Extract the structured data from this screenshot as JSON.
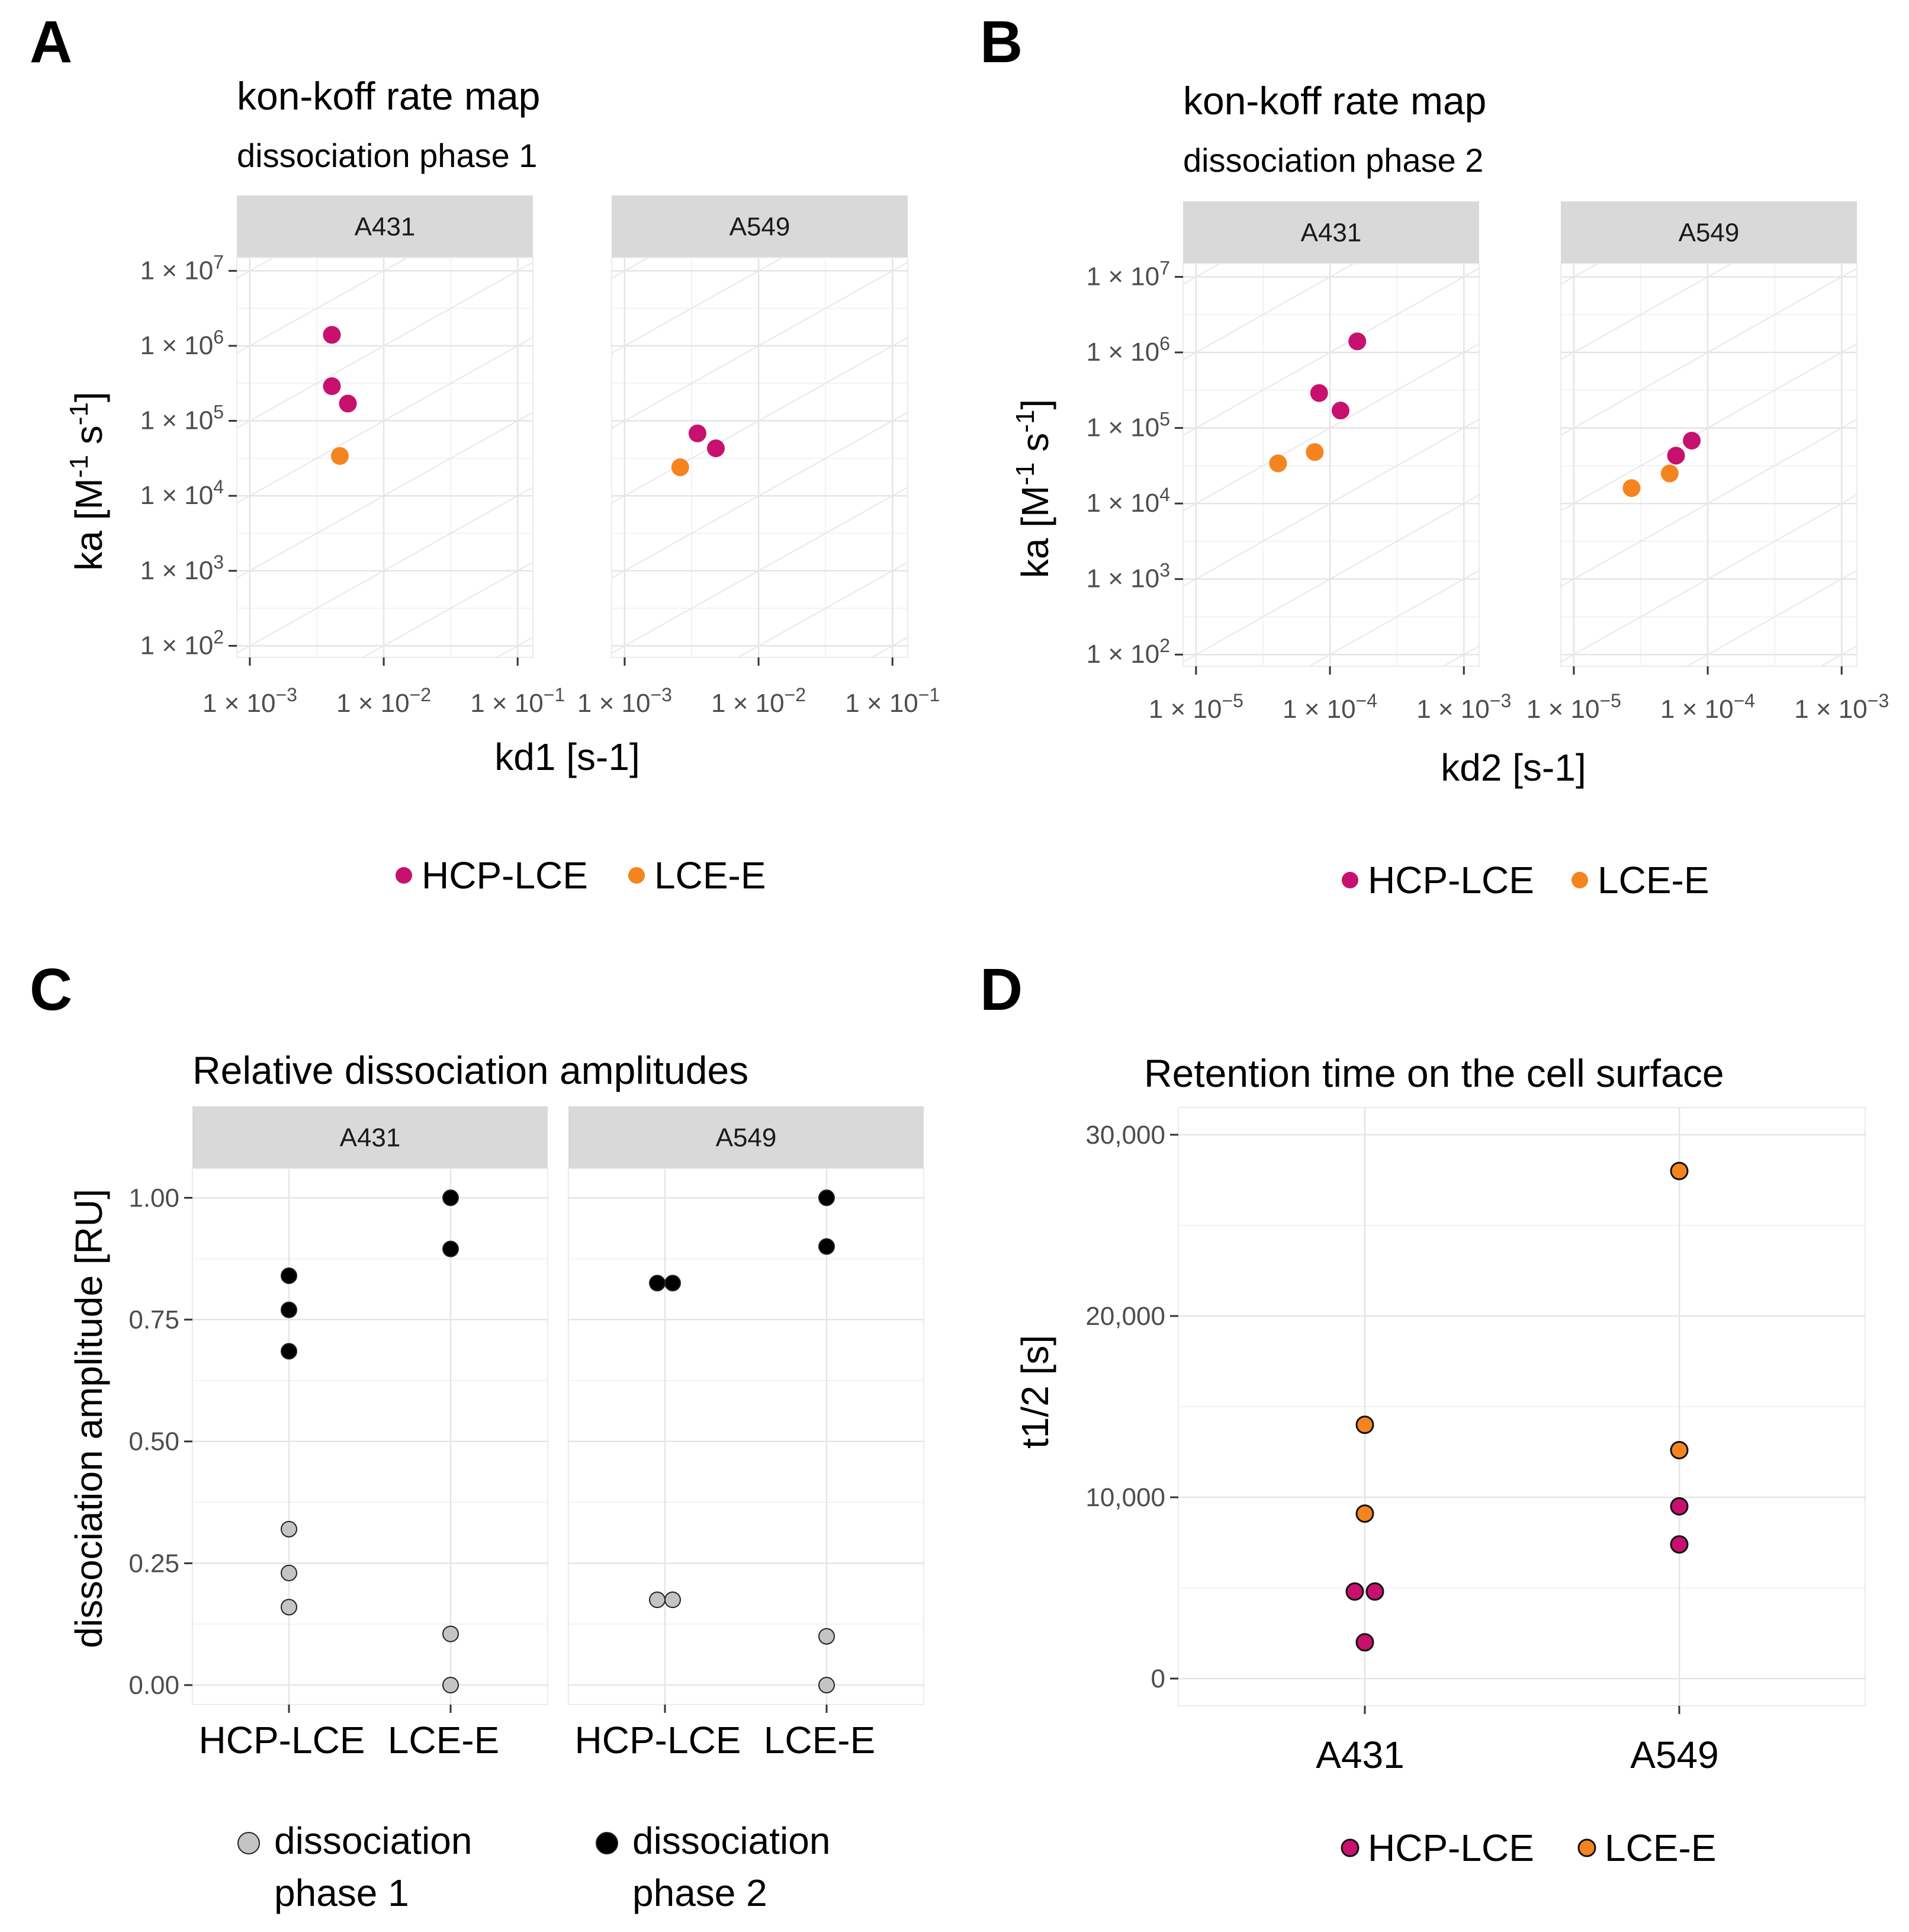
{
  "panels": {
    "A": {
      "letter": "A",
      "chart_data": {
        "type": "scatter",
        "title": "kon-koff rate map",
        "subtitle": "dissociation phase 1",
        "xlabel": "kd1 [s-1]",
        "ylabel": "ka [M-1 s-1]",
        "xscale": "log10",
        "yscale": "log10",
        "xlim": [
          0.0008,
          0.13
        ],
        "ylim": [
          70,
          15000000
        ],
        "x_ticks": [
          0.001,
          0.01,
          0.1
        ],
        "x_tick_labels": [
          {
            "base": "1 × 10",
            "exp": "−3"
          },
          {
            "base": "1 × 10",
            "exp": "−2"
          },
          {
            "base": "1 × 10",
            "exp": "−1"
          }
        ],
        "y_ticks": [
          100,
          1000,
          10000,
          100000,
          1000000,
          10000000
        ],
        "y_tick_labels": [
          {
            "base": "1 × 10",
            "exp": "2"
          },
          {
            "base": "1 × 10",
            "exp": "3"
          },
          {
            "base": "1 × 10",
            "exp": "4"
          },
          {
            "base": "1 × 10",
            "exp": "5"
          },
          {
            "base": "1 × 10",
            "exp": "6"
          },
          {
            "base": "1 × 10",
            "exp": "7"
          }
        ],
        "facets": [
          {
            "name": "A431",
            "points": [
              {
                "series": "HCP-LCE",
                "x": 0.0041,
                "y": 1400000
              },
              {
                "series": "HCP-LCE",
                "x": 0.0041,
                "y": 290000
              },
              {
                "series": "HCP-LCE",
                "x": 0.0054,
                "y": 170000
              },
              {
                "series": "LCE-E",
                "x": 0.0047,
                "y": 34000
              }
            ]
          },
          {
            "name": "A549",
            "points": [
              {
                "series": "HCP-LCE",
                "x": 0.0035,
                "y": 68000
              },
              {
                "series": "HCP-LCE",
                "x": 0.0048,
                "y": 43000
              },
              {
                "series": "LCE-E",
                "x": 0.0026,
                "y": 24000
              }
            ]
          }
        ],
        "legend": [
          {
            "label": "HCP-LCE",
            "color": "#c8106e"
          },
          {
            "label": "LCE-E",
            "color": "#f5841f"
          }
        ],
        "legend_position": "bottom"
      }
    },
    "B": {
      "letter": "B",
      "chart_data": {
        "type": "scatter",
        "title": "kon-koff rate map",
        "subtitle": "dissociation phase 2",
        "xlabel": "kd2 [s-1]",
        "ylabel": "ka [M-1 s-1]",
        "xscale": "log10",
        "yscale": "log10",
        "xlim": [
          8e-06,
          0.0013
        ],
        "ylim": [
          70,
          15000000
        ],
        "x_ticks": [
          1e-05,
          0.0001,
          0.001
        ],
        "x_tick_labels": [
          {
            "base": "1 × 10",
            "exp": "−5"
          },
          {
            "base": "1 × 10",
            "exp": "−4"
          },
          {
            "base": "1 × 10",
            "exp": "−3"
          }
        ],
        "y_ticks": [
          100,
          1000,
          10000,
          100000,
          1000000,
          10000000
        ],
        "y_tick_labels": [
          {
            "base": "1 × 10",
            "exp": "2"
          },
          {
            "base": "1 × 10",
            "exp": "3"
          },
          {
            "base": "1 × 10",
            "exp": "4"
          },
          {
            "base": "1 × 10",
            "exp": "5"
          },
          {
            "base": "1 × 10",
            "exp": "6"
          },
          {
            "base": "1 × 10",
            "exp": "7"
          }
        ],
        "facets": [
          {
            "name": "A431",
            "points": [
              {
                "series": "HCP-LCE",
                "x": 0.00016,
                "y": 1400000
              },
              {
                "series": "HCP-LCE",
                "x": 8.3e-05,
                "y": 290000
              },
              {
                "series": "HCP-LCE",
                "x": 0.00012,
                "y": 170000
              },
              {
                "series": "LCE-E",
                "x": 4.1e-05,
                "y": 34000
              },
              {
                "series": "LCE-E",
                "x": 7.7e-05,
                "y": 48000
              }
            ]
          },
          {
            "name": "A549",
            "points": [
              {
                "series": "HCP-LCE",
                "x": 7.6e-05,
                "y": 68000
              },
              {
                "series": "HCP-LCE",
                "x": 5.8e-05,
                "y": 43000
              },
              {
                "series": "LCE-E",
                "x": 5.2e-05,
                "y": 25000
              },
              {
                "series": "LCE-E",
                "x": 2.7e-05,
                "y": 16000
              }
            ]
          }
        ],
        "legend": [
          {
            "label": "HCP-LCE",
            "color": "#c8106e"
          },
          {
            "label": "LCE-E",
            "color": "#f5841f"
          }
        ],
        "legend_position": "bottom"
      }
    },
    "C": {
      "letter": "C",
      "chart_data": {
        "type": "scatter",
        "title": "Relative dissociation amplitudes",
        "xlabel": "",
        "ylabel": "dissociation amplitude [RU]",
        "categories": [
          "HCP-LCE",
          "LCE-E"
        ],
        "ylim": [
          -0.04,
          1.06
        ],
        "y_ticks": [
          0.0,
          0.25,
          0.5,
          0.75,
          1.0
        ],
        "y_tick_labels": [
          "0.00",
          "0.25",
          "0.50",
          "0.75",
          "1.00"
        ],
        "facets": [
          {
            "name": "A431",
            "points": [
              {
                "category": "HCP-LCE",
                "phase": 2,
                "y": 0.84,
                "dodge": 0
              },
              {
                "category": "HCP-LCE",
                "phase": 2,
                "y": 0.77,
                "dodge": 0
              },
              {
                "category": "HCP-LCE",
                "phase": 2,
                "y": 0.685,
                "dodge": 0
              },
              {
                "category": "HCP-LCE",
                "phase": 1,
                "y": 0.32,
                "dodge": 0
              },
              {
                "category": "HCP-LCE",
                "phase": 1,
                "y": 0.23,
                "dodge": 0
              },
              {
                "category": "HCP-LCE",
                "phase": 1,
                "y": 0.16,
                "dodge": 0
              },
              {
                "category": "LCE-E",
                "phase": 2,
                "y": 1.0,
                "dodge": 0
              },
              {
                "category": "LCE-E",
                "phase": 2,
                "y": 0.895,
                "dodge": 0
              },
              {
                "category": "LCE-E",
                "phase": 1,
                "y": 0.105,
                "dodge": 0
              },
              {
                "category": "LCE-E",
                "phase": 1,
                "y": 0.0,
                "dodge": 0
              }
            ]
          },
          {
            "name": "A549",
            "points": [
              {
                "category": "HCP-LCE",
                "phase": 2,
                "y": 0.825,
                "dodge": -1
              },
              {
                "category": "HCP-LCE",
                "phase": 2,
                "y": 0.825,
                "dodge": 1
              },
              {
                "category": "HCP-LCE",
                "phase": 1,
                "y": 0.175,
                "dodge": -1
              },
              {
                "category": "HCP-LCE",
                "phase": 1,
                "y": 0.175,
                "dodge": 1
              },
              {
                "category": "LCE-E",
                "phase": 2,
                "y": 1.0,
                "dodge": 0
              },
              {
                "category": "LCE-E",
                "phase": 2,
                "y": 0.9,
                "dodge": 0
              },
              {
                "category": "LCE-E",
                "phase": 1,
                "y": 0.1,
                "dodge": 0
              },
              {
                "category": "LCE-E",
                "phase": 1,
                "y": 0.0,
                "dodge": 0
              }
            ]
          }
        ],
        "legend": [
          {
            "line1": "dissociation",
            "line2": "phase 1",
            "color": "#c4c4c4"
          },
          {
            "line1": "dissociation",
            "line2": "phase 2",
            "color": "#000000"
          }
        ],
        "legend_position": "bottom"
      }
    },
    "D": {
      "letter": "D",
      "chart_data": {
        "type": "scatter",
        "title": "Retention time on the cell surface",
        "xlabel": "",
        "ylabel": "t1/2 [s]",
        "categories": [
          "A431",
          "A549"
        ],
        "ylim": [
          -1500,
          31500
        ],
        "y_ticks": [
          0,
          10000,
          20000,
          30000
        ],
        "y_tick_labels": [
          "0",
          "10,000",
          "20,000",
          "30,000"
        ],
        "points": [
          {
            "category": "A431",
            "series": "LCE-E",
            "y": 14000,
            "dodge": 0
          },
          {
            "category": "A431",
            "series": "LCE-E",
            "y": 9100,
            "dodge": 0
          },
          {
            "category": "A431",
            "series": "HCP-LCE",
            "y": 4800,
            "dodge": -1
          },
          {
            "category": "A431",
            "series": "HCP-LCE",
            "y": 4800,
            "dodge": 1
          },
          {
            "category": "A431",
            "series": "HCP-LCE",
            "y": 2000,
            "dodge": 0
          },
          {
            "category": "A549",
            "series": "LCE-E",
            "y": 28000,
            "dodge": 0
          },
          {
            "category": "A549",
            "series": "LCE-E",
            "y": 12600,
            "dodge": 0
          },
          {
            "category": "A549",
            "series": "HCP-LCE",
            "y": 9500,
            "dodge": 0
          },
          {
            "category": "A549",
            "series": "HCP-LCE",
            "y": 7400,
            "dodge": 0
          }
        ],
        "legend": [
          {
            "label": "HCP-LCE",
            "color": "#c8106e"
          },
          {
            "label": "LCE-E",
            "color": "#f5841f"
          }
        ],
        "legend_position": "bottom"
      }
    }
  }
}
